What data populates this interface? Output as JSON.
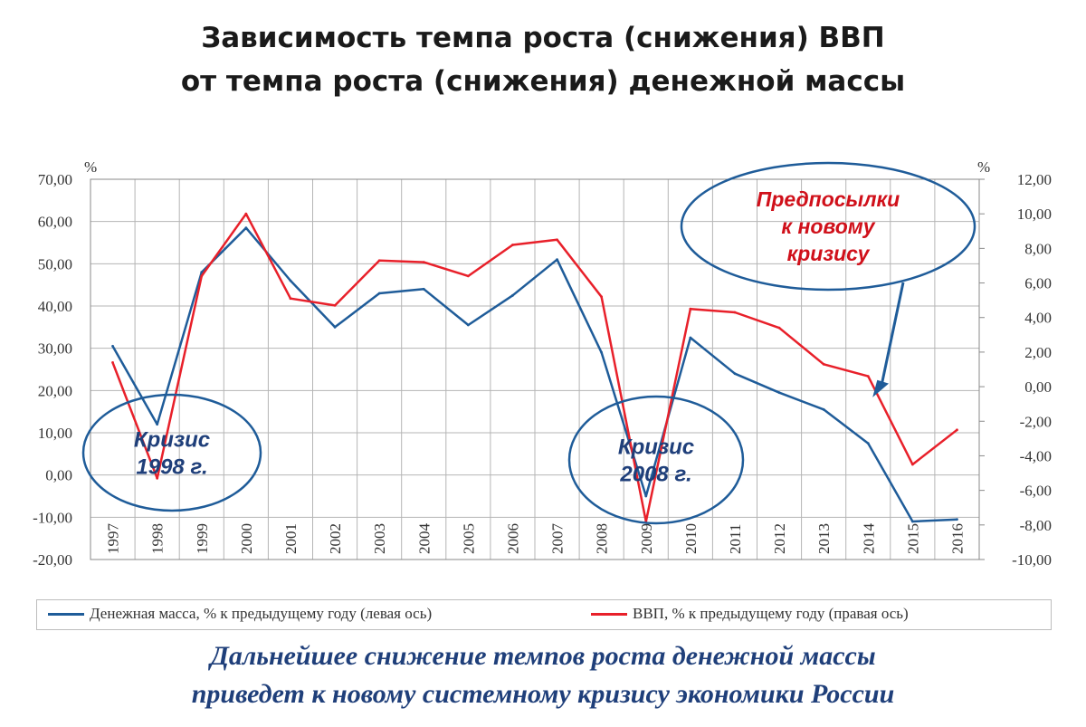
{
  "slide": {
    "title_line1": "Зависимость темпа роста (снижения) ВВП",
    "title_line2": "от темпа роста (снижения) денежной массы",
    "conclusion_line1": "Дальнейшее снижение темпов роста денежной массы",
    "conclusion_line2": "приведет к новому системному кризису экономики России"
  },
  "colors": {
    "money": "#1f5c99",
    "gdp": "#e8202a",
    "callout_circle": "#1f5c99",
    "callout_text_red": "#d0101a",
    "callout_text_blue": "#1f3f7a",
    "grid": "#b5b5b5"
  },
  "chart_data": {
    "type": "line",
    "x": [
      "1997",
      "1998",
      "1999",
      "2000",
      "2001",
      "2002",
      "2003",
      "2004",
      "2005",
      "2006",
      "2007",
      "2008",
      "2009",
      "2010",
      "2011",
      "2012",
      "2013",
      "2014",
      "2015",
      "2016"
    ],
    "left_axis": {
      "unit": "%",
      "range": [
        -20,
        70
      ],
      "ticks": [
        "70,00",
        "60,00",
        "50,00",
        "40,00",
        "30,00",
        "20,00",
        "10,00",
        "0,00",
        "-10,00",
        "-20,00"
      ]
    },
    "right_axis": {
      "unit": "%",
      "range": [
        -10,
        12
      ],
      "ticks": [
        "12,00",
        "10,00",
        "8,00",
        "6,00",
        "4,00",
        "2,00",
        "0,00",
        "-2,00",
        "-4,00",
        "-6,00",
        "-8,00",
        "-10,00"
      ]
    },
    "series": [
      {
        "name": "Денежная масса, % к предыдущему году (левая ось)",
        "axis": "left",
        "color": "#1f5c99",
        "values": [
          30.5,
          12.0,
          48.0,
          58.5,
          46.0,
          35.0,
          43.0,
          44.0,
          35.5,
          42.5,
          51.0,
          29.0,
          -5.0,
          32.5,
          24.0,
          19.5,
          15.5,
          7.5,
          -11.0,
          -10.5
        ]
      },
      {
        "name": "ВВП, % к предыдущему году (правая ось)",
        "axis": "right",
        "color": "#e8202a",
        "values": [
          1.4,
          -5.3,
          6.4,
          10.0,
          5.1,
          4.7,
          7.3,
          7.2,
          6.4,
          8.2,
          8.5,
          5.2,
          -7.8,
          4.5,
          4.3,
          3.4,
          1.3,
          0.6,
          -4.5,
          -2.5
        ]
      }
    ],
    "grid": true,
    "legend_position": "bottom"
  },
  "callouts": {
    "crisis_1998": "Кризис\n1998 г.",
    "crisis_2008": "Кризис\n2008 г.",
    "preconditions": "Предпосылки\nк новому\nкризису"
  }
}
